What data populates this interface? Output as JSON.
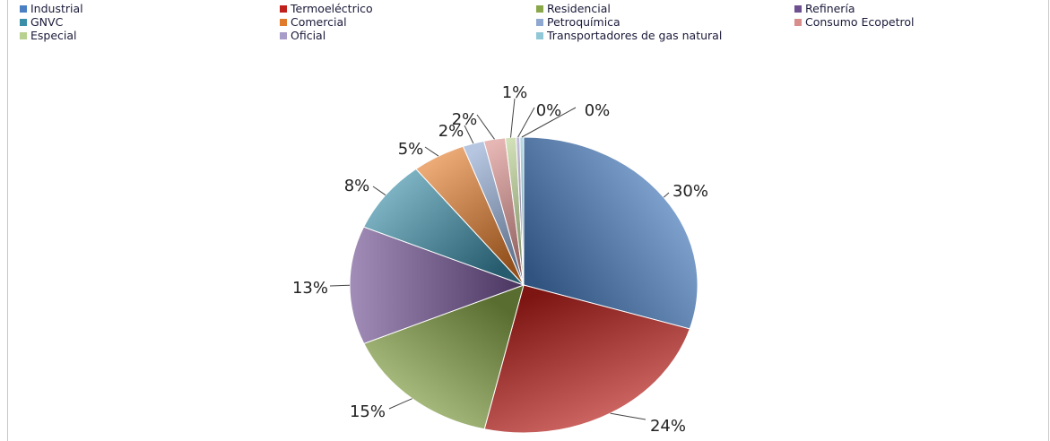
{
  "chart_data": {
    "type": "pie",
    "categories": [
      "Industrial",
      "Termoeléctrico",
      "Residencial",
      "Refinería",
      "GNVC",
      "Comercial",
      "Petroquímica",
      "Consumo Ecopetrol",
      "Especial",
      "Oficial",
      "Transportadores de gas natural"
    ],
    "values": [
      30,
      24,
      15,
      13,
      8,
      5,
      2,
      2,
      1,
      0,
      0
    ],
    "data_labels": [
      "30%",
      "24%",
      "15%",
      "13%",
      "8%",
      "5%",
      "2%",
      "2%",
      "1%",
      "0%",
      "0%"
    ],
    "colors": [
      "#4a7fc4",
      "#c0201c",
      "#8aa84a",
      "#6e5090",
      "#3b8ea8",
      "#e07b2c",
      "#8ea8d0",
      "#d88e8c",
      "#b8d090",
      "#a89cc8",
      "#90c8d8"
    ],
    "legend_position": "top",
    "title": "",
    "start_angle_deg": 90,
    "direction": "clockwise"
  }
}
